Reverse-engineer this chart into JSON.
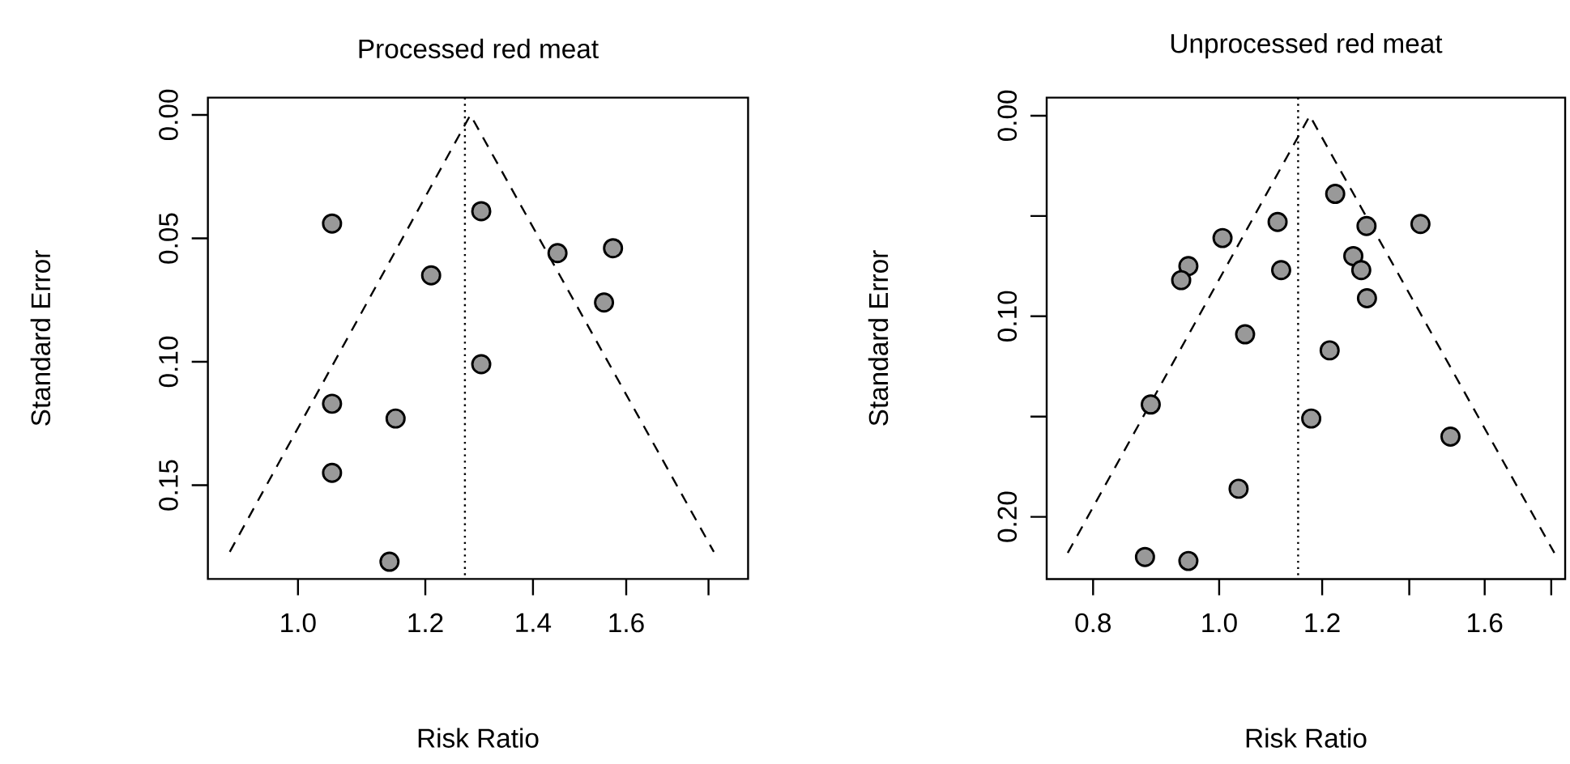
{
  "chart_data": [
    {
      "type": "scatter",
      "title": "Processed red meat",
      "xlabel": "Risk Ratio",
      "ylabel": "Standard Error",
      "log": "x",
      "xlim": [
        0.879,
        1.905
      ],
      "ylim": [
        0.188,
        -0.007
      ],
      "xticks": [
        {
          "value": 1.0,
          "label": "1.0"
        },
        1.2,
        1.4,
        1.6,
        {
          "value": 1.8,
          "label": null
        }
      ],
      "yticks": [
        {
          "value": 0.0,
          "label": "0.00"
        },
        0.05,
        {
          "value": 0.1,
          "label": "0.10"
        },
        0.15
      ],
      "ref_lines": [
        {
          "axis": "x",
          "value": 1.27,
          "line_style": "dotted",
          "color": "#000000"
        }
      ],
      "series": [
        {
          "color": "#999999",
          "marker": "circle",
          "x": [
            1.05,
            1.3,
            1.45,
            1.57,
            1.21,
            1.55,
            1.3,
            1.05,
            1.15,
            1.05,
            1.14
          ],
          "values": [
            0.044,
            0.039,
            0.056,
            0.054,
            0.065,
            0.076,
            0.101,
            0.117,
            0.123,
            0.145,
            0.181
          ]
        },
        {
          "type": "line",
          "color": "#000000",
          "marker": "none",
          "line_style": "dashed",
          "x": [
            0.907,
            1.28,
            1.814
          ],
          "values": [
            0.177,
            0.0,
            0.177
          ]
        }
      ]
    },
    {
      "type": "scatter",
      "title": "Unprocessed red meat",
      "xlabel": "Risk Ratio",
      "ylabel": "Standard Error",
      "log": "x",
      "xlim": [
        0.737,
        1.845
      ],
      "ylim": [
        0.231,
        -0.009
      ],
      "xticks": [
        0.8,
        {
          "value": 1.0,
          "label": "1.0"
        },
        1.2,
        {
          "value": 1.4,
          "label": null
        },
        1.6,
        {
          "value": 1.8,
          "label": null
        }
      ],
      "yticks": [
        {
          "value": 0.0,
          "label": "0.00"
        },
        {
          "value": 0.05,
          "label": null
        },
        {
          "value": 0.1,
          "label": "0.10"
        },
        {
          "value": 0.15,
          "label": null
        },
        {
          "value": 0.2,
          "label": "0.20"
        }
      ],
      "ref_lines": [
        {
          "axis": "x",
          "value": 1.15,
          "line_style": "dotted",
          "color": "#000000"
        }
      ],
      "series": [
        {
          "color": "#999999",
          "marker": "circle",
          "x": [
            1.228,
            1.109,
            1.298,
            1.428,
            1.006,
            0.947,
            0.935,
            1.116,
            1.268,
            1.286,
            1.299,
            1.047,
            1.216,
            0.886,
            1.177,
            1.506,
            1.035,
            0.877,
            0.947
          ],
          "values": [
            0.039,
            0.053,
            0.055,
            0.054,
            0.061,
            0.075,
            0.082,
            0.077,
            0.07,
            0.077,
            0.091,
            0.109,
            0.117,
            0.144,
            0.151,
            0.16,
            0.186,
            0.22,
            0.222
          ]
        },
        {
          "type": "line",
          "color": "#000000",
          "marker": "none",
          "line_style": "dashed",
          "x": [
            0.765,
            1.174,
            1.81
          ],
          "values": [
            0.218,
            0.0,
            0.218
          ]
        }
      ]
    }
  ]
}
